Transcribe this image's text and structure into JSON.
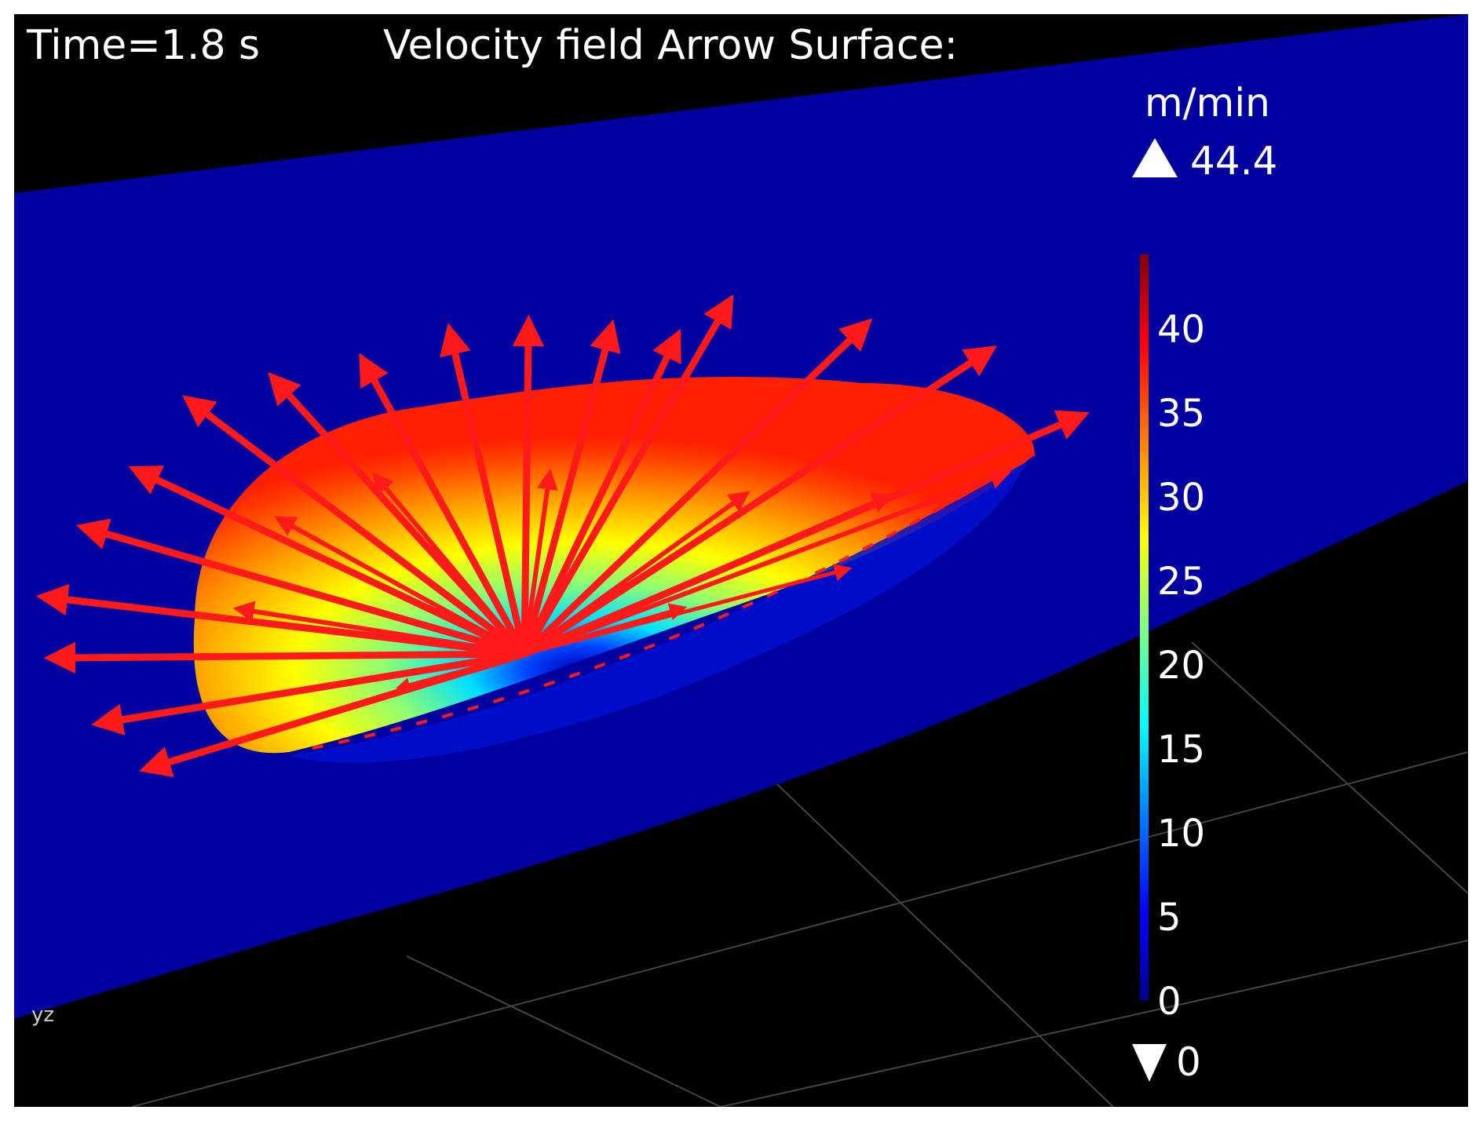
{
  "header": {
    "time_label": "Time=1.8 s",
    "plot_title": "Velocity field  Arrow Surface:"
  },
  "colorbar": {
    "unit": "m/min",
    "max_label": "44.4",
    "min_label": "0",
    "ticks": [
      "40",
      "35",
      "30",
      "25",
      "20",
      "15",
      "10",
      "5",
      "0"
    ]
  },
  "axis_gizmo": "yz",
  "colors": {
    "background": "#000000",
    "surface": "#0000a0",
    "arrow": "#ff1a1a",
    "text": "#ffffff"
  },
  "chart_data": {
    "type": "heatmap",
    "title": "Velocity field  Arrow Surface:",
    "subtitle": "Time=1.8 s",
    "colorbar_unit": "m/min",
    "colorbar_range": [
      0,
      44.4
    ],
    "colorbar_ticks": [
      0,
      5,
      10,
      15,
      20,
      25,
      30,
      35,
      40
    ],
    "colormap": "rainbow",
    "overlay": "red velocity arrows radiating outward from a central stagnation point",
    "min_value": 0,
    "max_value": 44.4
  }
}
